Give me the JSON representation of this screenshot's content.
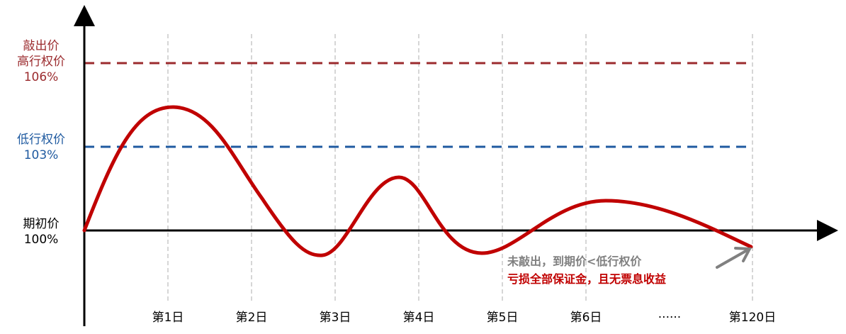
{
  "levels": {
    "knockout": {
      "line1": "敲出价",
      "line2": "高行权价",
      "value": "106%",
      "color": "#9b2b2e"
    },
    "low_strike": {
      "line1": "低行权价",
      "value": "103%",
      "color": "#1f5aa0"
    },
    "initial": {
      "line1": "期初价",
      "value": "100%",
      "color": "#000000"
    }
  },
  "x_ticks": [
    "第1日",
    "第2日",
    "第3日",
    "第4日",
    "第5日",
    "第6日",
    "......",
    "第120日"
  ],
  "annotation": {
    "line1": "未敲出，到期价<低行权价",
    "line2": "亏损全部保证金，且无票息收益",
    "line1_color": "#808080",
    "line2_color": "#c00000"
  },
  "colors": {
    "price_path": "#c00000",
    "arrow": "#808080",
    "grid": "#c8c8c8"
  }
}
